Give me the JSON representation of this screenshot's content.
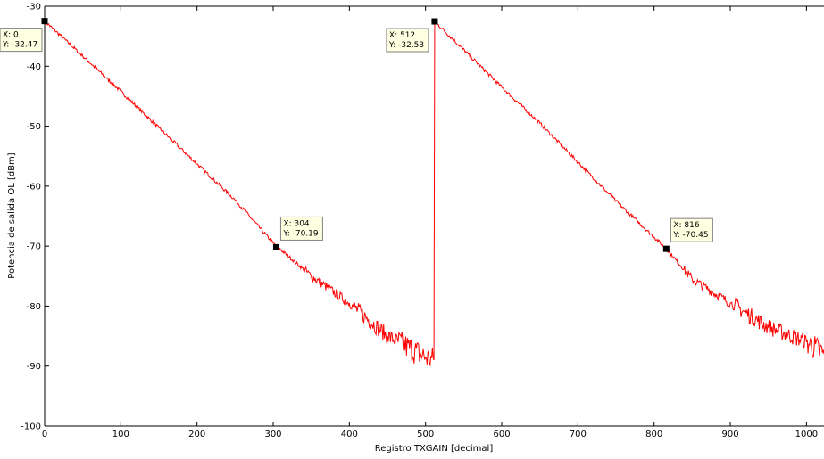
{
  "chart_data": {
    "type": "line",
    "xlabel": "Registro TXGAIN [decimal]",
    "ylabel": "Potencia de salida OL [dBm]",
    "xlim": [
      0,
      1023
    ],
    "ylim": [
      -100,
      -30
    ],
    "xticks": [
      0,
      100,
      200,
      300,
      400,
      500,
      600,
      700,
      800,
      900,
      1000
    ],
    "xtick_labels": [
      "0",
      "100",
      "200",
      "300",
      "400",
      "500",
      "600",
      "700",
      "800",
      "900",
      "1000"
    ],
    "yticks": [
      -100,
      -90,
      -80,
      -70,
      -60,
      -50,
      -40,
      -30
    ],
    "ytick_labels": [
      "-100",
      "-90",
      "-80",
      "-70",
      "-60",
      "-50",
      "-40",
      "-30"
    ],
    "grid": false,
    "line_color": "#ff0000",
    "series": [
      {
        "x": [
          0,
          50,
          100,
          150,
          200,
          250,
          300,
          350,
          400,
          450,
          500,
          511,
          512,
          560,
          600,
          650,
          700,
          750,
          800,
          816,
          850,
          900,
          950,
          1000,
          1023
        ],
        "y": [
          -32.47,
          -38.3,
          -44.2,
          -50.3,
          -56.3,
          -62.3,
          -69.5,
          -75.0,
          -79.5,
          -85.0,
          -88.5,
          -89.0,
          -32.53,
          -38.5,
          -43.5,
          -49.5,
          -56.0,
          -62.5,
          -68.5,
          -70.45,
          -75.5,
          -79.5,
          -83.5,
          -86.0,
          -88.0
        ]
      }
    ],
    "annotations": [
      {
        "x": 0,
        "y": -32.47,
        "line1": "X: 0",
        "line2": "Y: -32.47"
      },
      {
        "x": 304,
        "y": -70.19,
        "line1": "X: 304",
        "line2": "Y: -70.19"
      },
      {
        "x": 512,
        "y": -32.53,
        "line1": "X: 512",
        "line2": "Y: -32.53"
      },
      {
        "x": 816,
        "y": -70.45,
        "line1": "X: 816",
        "line2": "Y: -70.45"
      }
    ]
  }
}
